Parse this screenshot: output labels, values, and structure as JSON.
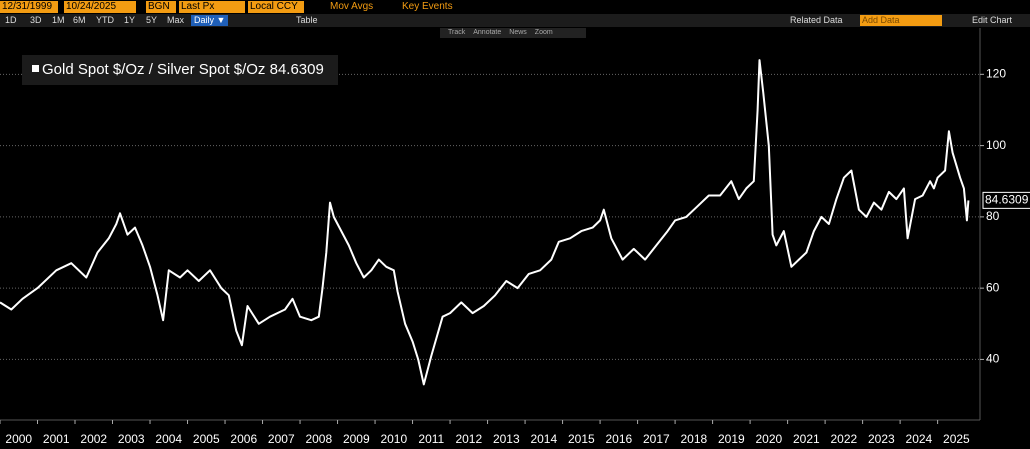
{
  "toolbar": {
    "start_date": "12/31/1999",
    "end_date": "10/24/2025",
    "source": "BGN",
    "field": "Last Px",
    "currency": "Local CCY",
    "mov_avgs": "Mov Avgs",
    "key_events": "Key Events",
    "ranges": [
      "1D",
      "3D",
      "1M",
      "6M",
      "YTD",
      "1Y",
      "5Y",
      "Max"
    ],
    "frequency": "Daily ▼",
    "table": "Table",
    "related_data": "Related Data",
    "add_data": "Add Data",
    "edit_chart": "Edit Chart",
    "tools": [
      "Track",
      "Annotate",
      "News",
      "Zoom"
    ]
  },
  "chart_data": {
    "type": "line",
    "x": [
      2000.0,
      2000.3,
      2000.6,
      2001.0,
      2001.5,
      2001.9,
      2002.3,
      2002.6,
      2002.9,
      2003.1,
      2003.2,
      2003.4,
      2003.6,
      2003.8,
      2004.0,
      2004.2,
      2004.35,
      2004.5,
      2004.8,
      2005.0,
      2005.3,
      2005.6,
      2005.9,
      2006.1,
      2006.3,
      2006.45,
      2006.6,
      2006.9,
      2007.2,
      2007.6,
      2007.8,
      2008.0,
      2008.3,
      2008.5,
      2008.6,
      2008.7,
      2008.8,
      2008.9,
      2009.1,
      2009.3,
      2009.5,
      2009.7,
      2009.9,
      2010.1,
      2010.3,
      2010.5,
      2010.6,
      2010.8,
      2011.0,
      2011.15,
      2011.3,
      2011.5,
      2011.8,
      2012.0,
      2012.3,
      2012.6,
      2012.9,
      2013.2,
      2013.5,
      2013.8,
      2014.1,
      2014.4,
      2014.7,
      2014.9,
      2015.2,
      2015.5,
      2015.8,
      2016.0,
      2016.1,
      2016.3,
      2016.6,
      2016.9,
      2017.2,
      2017.5,
      2017.8,
      2018.0,
      2018.3,
      2018.6,
      2018.9,
      2019.2,
      2019.5,
      2019.7,
      2019.9,
      2020.1,
      2020.2,
      2020.25,
      2020.35,
      2020.5,
      2020.6,
      2020.7,
      2020.9,
      2021.1,
      2021.3,
      2021.5,
      2021.7,
      2021.9,
      2022.1,
      2022.3,
      2022.5,
      2022.7,
      2022.9,
      2023.1,
      2023.3,
      2023.5,
      2023.7,
      2023.9,
      2024.1,
      2024.2,
      2024.4,
      2024.6,
      2024.8,
      2024.9,
      2025.0,
      2025.2,
      2025.3,
      2025.4,
      2025.6,
      2025.7,
      2025.78,
      2025.82
    ],
    "series": [
      {
        "name": "Gold Spot $/Oz / Silver Spot $/Oz",
        "color": "#ffffff",
        "values": [
          56,
          54,
          57,
          60,
          65,
          67,
          63,
          70,
          74,
          78,
          81,
          75,
          77,
          72,
          66,
          58,
          51,
          65,
          63,
          65,
          62,
          65,
          60,
          58,
          48,
          44,
          55,
          50,
          52,
          54,
          57,
          52,
          51,
          52,
          60,
          70,
          84,
          80,
          76,
          72,
          67,
          63,
          65,
          68,
          66,
          65,
          59,
          50,
          45,
          40,
          33,
          41,
          52,
          53,
          56,
          53,
          55,
          58,
          62,
          60,
          64,
          65,
          68,
          73,
          74,
          76,
          77,
          79,
          82,
          74,
          68,
          71,
          68,
          72,
          76,
          79,
          80,
          83,
          86,
          86,
          90,
          85,
          88,
          90,
          110,
          124,
          115,
          100,
          75,
          72,
          76,
          66,
          68,
          70,
          76,
          80,
          78,
          85,
          91,
          93,
          82,
          80,
          84,
          82,
          87,
          85,
          88,
          74,
          85,
          86,
          90,
          88,
          91,
          93,
          104,
          98,
          91,
          88,
          79,
          84.6309
        ]
      }
    ],
    "xlim": [
      2000,
      2026.13
    ],
    "xticks": [
      2000,
      2001,
      2002,
      2003,
      2004,
      2005,
      2006,
      2007,
      2008,
      2009,
      2010,
      2011,
      2012,
      2013,
      2014,
      2015,
      2016,
      2017,
      2018,
      2019,
      2020,
      2021,
      2022,
      2023,
      2024,
      2025
    ],
    "ylim": [
      23,
      133
    ],
    "yticks": [
      40,
      60,
      80,
      100,
      120
    ],
    "grid": true
  }
}
